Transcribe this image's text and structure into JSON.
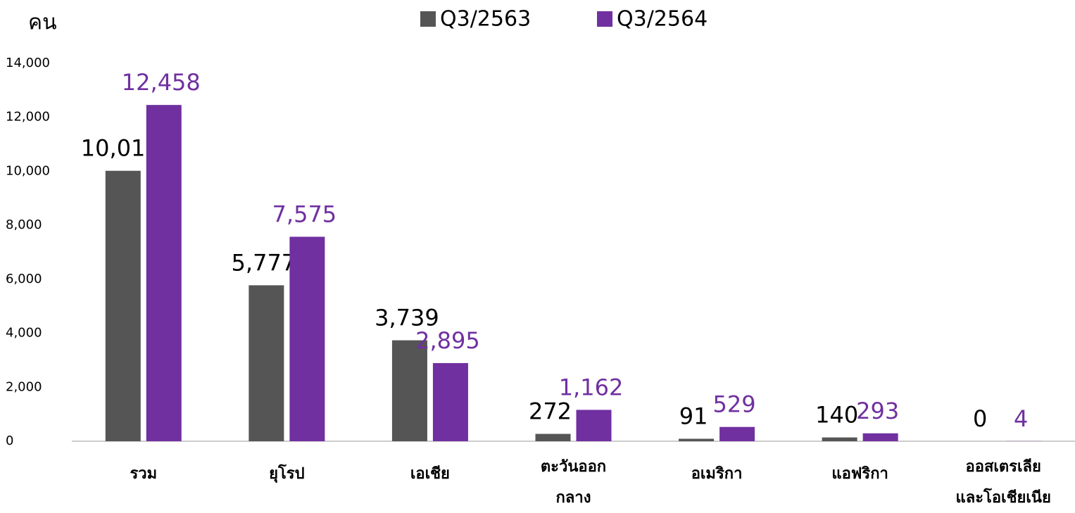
{
  "chart_data": {
    "type": "bar",
    "ylabel": "คน",
    "categories": [
      "รวม",
      "ยุโรป",
      "เอเชีย",
      "ตะวันออก\nกลาง",
      "อเมริกา",
      "แอฟริกา",
      "ออสเตรเลีย\nและโอเชียเนีย"
    ],
    "series": [
      {
        "name": "Q3/2563",
        "color": "#555555",
        "label_color": "#000000",
        "values": [
          10019,
          5777,
          3739,
          272,
          91,
          140,
          0
        ],
        "value_labels": [
          "10,019",
          "5,777",
          "3,739",
          "272",
          "91",
          "140",
          "0"
        ]
      },
      {
        "name": "Q3/2564",
        "color": "#7030a0",
        "label_color": "#7030a0",
        "values": [
          12458,
          7575,
          2895,
          1162,
          529,
          293,
          4
        ],
        "value_labels": [
          "12,458",
          "7,575",
          "2,895",
          "1,162",
          "529",
          "293",
          "4"
        ]
      }
    ],
    "ylim": [
      0,
      14000
    ],
    "yticks": [
      0,
      {
        "value": 2000,
        "label": "2,000"
      },
      {
        "value": 4000,
        "label": "4,000"
      },
      {
        "value": 6000,
        "label": "6,000"
      },
      {
        "value": 8000,
        "label": "8,000"
      },
      {
        "value": 10000,
        "label": "10,000"
      },
      {
        "value": 12000,
        "label": "12,000"
      },
      {
        "value": 14000,
        "label": "14,000"
      }
    ],
    "legend": "top",
    "grid": false
  }
}
